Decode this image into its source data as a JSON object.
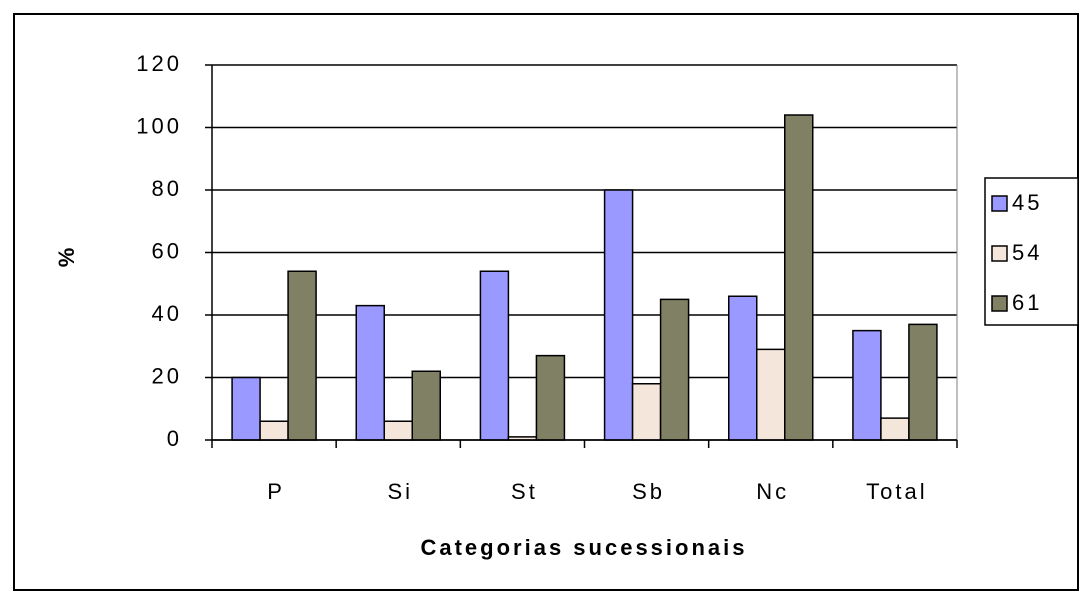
{
  "chart_data": {
    "type": "bar",
    "xlabel": "Categorias sucessionais",
    "ylabel": "%",
    "categories": [
      "P",
      "Si",
      "St",
      "Sb",
      "Nc",
      "Total"
    ],
    "series": [
      {
        "name": "45",
        "color": "#9999ff",
        "values": [
          20,
          43,
          54,
          80,
          46,
          35
        ]
      },
      {
        "name": "54",
        "color": "#f5e6dc",
        "values": [
          6,
          6,
          1,
          18,
          29,
          7
        ]
      },
      {
        "name": "61",
        "color": "#808064",
        "values": [
          54,
          22,
          27,
          45,
          104,
          37
        ]
      }
    ],
    "ylim": [
      0,
      120
    ],
    "yticks": [
      0,
      20,
      40,
      60,
      80,
      100,
      120
    ],
    "grid": true,
    "legend": "right"
  }
}
